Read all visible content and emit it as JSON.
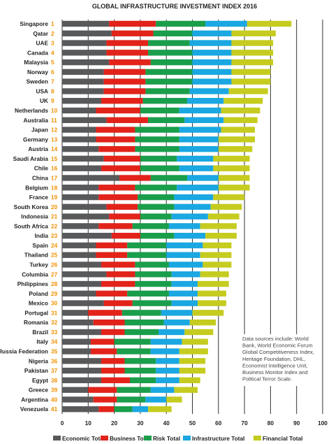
{
  "chart_data": {
    "type": "bar",
    "orientation": "horizontal",
    "stacked": true,
    "title": "GLOBAL INFRASTRUCTURE INVESTMENT INDEX 2016",
    "xlim": [
      0,
      100
    ],
    "xticks": [
      "0",
      "10",
      "20",
      "30",
      "40",
      "50",
      "60",
      "70",
      "80",
      "90",
      "100"
    ],
    "grid": "vertical",
    "legend_position": "bottom",
    "categories": [
      "Singapore",
      "Qatar",
      "UAE",
      "Canada",
      "Malaysia",
      "Norway",
      "Sweden",
      "USA",
      "UK",
      "Netherlands",
      "Australia",
      "Japan",
      "Germany",
      "Austria",
      "Saudi Arabia",
      "Chile",
      "China",
      "Belgium",
      "France",
      "South Korea",
      "Indonesia",
      "South Africa",
      "India",
      "Spain",
      "Thailand",
      "Turkey",
      "Columbia",
      "Philippines",
      "Poland",
      "Mexico",
      "Portugal",
      "Romania",
      "Brazil",
      "Italy",
      "Russia Federation",
      "Nigeria",
      "Pakistan",
      "Egypt",
      "Greece",
      "Argentina",
      "Venezuela"
    ],
    "ranks": [
      "1",
      "2",
      "3",
      "4",
      "5",
      "6",
      "7",
      "8",
      "9",
      "10",
      "11",
      "12",
      "13",
      "14",
      "15",
      "16",
      "17",
      "18",
      "19",
      "20",
      "21",
      "22",
      "23",
      "24",
      "25",
      "26",
      "27",
      "28",
      "29",
      "30",
      "31",
      "32",
      "33",
      "34",
      "35",
      "36",
      "37",
      "38",
      "39",
      "40",
      "41"
    ],
    "series": [
      {
        "name": "Economic Total",
        "color": "#58595b",
        "values": [
          18,
          19,
          17,
          17,
          18,
          16,
          16,
          16,
          15,
          13,
          17,
          13,
          13,
          14,
          16,
          15,
          22,
          14,
          14,
          17,
          18,
          14,
          19,
          13,
          13,
          15,
          17,
          15,
          13,
          16,
          10,
          12,
          15,
          11,
          11,
          15,
          15,
          15,
          10,
          12,
          14
        ]
      },
      {
        "name": "Business Total",
        "color": "#e2231a",
        "values": [
          18,
          16,
          16,
          16,
          16,
          16,
          16,
          16,
          16,
          17,
          16,
          15,
          15,
          14,
          14,
          15,
          12,
          14,
          15,
          12,
          12,
          13,
          11,
          12,
          12,
          13,
          11,
          13,
          12,
          11,
          13,
          12,
          9,
          9,
          10,
          9,
          9,
          11,
          11,
          9,
          6
        ]
      },
      {
        "name": "Risk Total",
        "color": "#1a9e4b",
        "values": [
          19,
          15,
          16,
          17,
          16,
          18,
          18,
          17,
          17,
          15,
          14,
          17,
          17,
          17,
          14,
          15,
          14,
          16,
          14,
          14,
          12,
          14,
          13,
          15,
          15,
          13,
          14,
          14,
          16,
          15,
          15,
          15,
          13,
          14,
          13,
          12,
          12,
          10,
          13,
          11,
          7
        ]
      },
      {
        "name": "Infrastructure Total",
        "color": "#1aa7e2",
        "values": [
          16,
          15,
          16,
          15,
          15,
          15,
          15,
          15,
          14,
          16,
          15,
          16,
          15,
          15,
          14,
          13,
          12,
          16,
          15,
          14,
          14,
          12,
          12,
          14,
          13,
          13,
          11,
          10,
          11,
          10,
          12,
          10,
          10,
          12,
          11,
          9,
          9,
          9,
          9,
          8,
          6
        ]
      },
      {
        "name": "Financial Total",
        "color": "#c5cc1f",
        "values": [
          17,
          17,
          16,
          16,
          16,
          15,
          15,
          15,
          15,
          15,
          13,
          13,
          14,
          13,
          14,
          14,
          12,
          12,
          12,
          12,
          12,
          14,
          12,
          11,
          12,
          11,
          11,
          12,
          11,
          11,
          12,
          10,
          11,
          10,
          11,
          10,
          10,
          8,
          9,
          6,
          9
        ]
      }
    ],
    "annotation": [
      "Data sources include: World",
      "Bank, World Economic Forum",
      "Global Competitiveness Index,",
      "Heritage Foundation, DHL,",
      "Economist Intelligence Unit,",
      "Business Monitor Index and",
      "Political Terror Scale."
    ]
  }
}
